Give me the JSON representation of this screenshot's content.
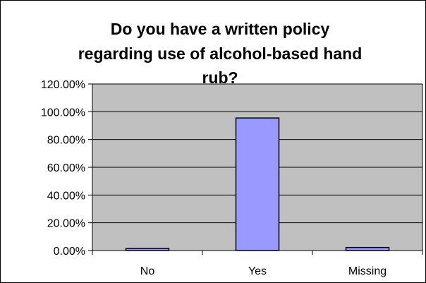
{
  "chart_data": {
    "type": "bar",
    "title_lines": [
      "Do you have a written policy",
      "regarding use of alcohol-based hand",
      "rub?"
    ],
    "categories": [
      "No",
      "Yes",
      "Missing"
    ],
    "values": [
      0.015,
      0.955,
      0.022
    ],
    "ylim": [
      0,
      1.2
    ],
    "y_ticks": [
      0,
      0.2,
      0.4,
      0.6,
      0.8,
      1.0,
      1.2
    ],
    "y_tick_labels": [
      "0.00%",
      "20.00%",
      "40.00%",
      "60.00%",
      "80.00%",
      "100.00%",
      "120.00%"
    ],
    "grid": true,
    "legend": "none",
    "colors": {
      "plot_area": "#c0c0c0",
      "bar_fill": "#9999ff",
      "bar_stroke": "#000000",
      "gridline": "#000000"
    }
  }
}
